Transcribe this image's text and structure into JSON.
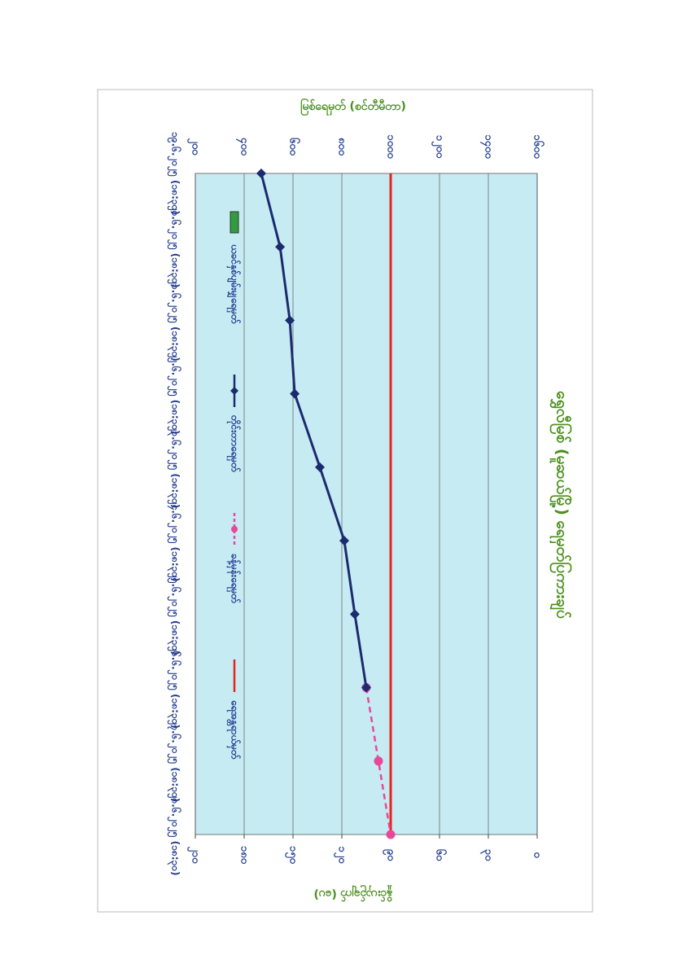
{
  "chart_data": {
    "type": "line",
    "title": "ရွှေလီမြစ် (မူဆယ်မြို့) ရေမှတ်ပြကားချပ်",
    "y_label": "မြစ်ရေမှတ် (စင်တီမီတာ)",
    "y2_label": "နှိုင်းယှဉ်ချက် (ပေ)",
    "categories": [
      "၁၉.၆.၂၀၂၅ (၁၈:၃၀)",
      "၂၀.၆.၂၀၂၅ (၁၈:၃၀)",
      "၂၁.၆.၂၀၂၅ (၁၈:၃၀)",
      "၂၂.၆.၂၀၂၅ (၁၈:၃၀)",
      "၂၃.၆.၂၀၂၅ (၁၈:၃၀)",
      "၂၄.၆.၂၀၂၅ (၁၈:၃၀)",
      "၂၅.၆.၂၀၂၅ (၁၈:၃၀)",
      "၂၆.၆.၂၀၂၅ (၁၈:၃၀)",
      "၂၇.၆.၂၀၂၅ (၁၈:၃၀)",
      "၂၈.၆.၂၀၂၅ (၁၈:၃၀)"
    ],
    "ylim": [
      200,
      1600
    ],
    "yticks": [
      {
        "value": 200,
        "label": "၂၀၀"
      },
      {
        "value": 400,
        "label": "၄၀၀"
      },
      {
        "value": 600,
        "label": "၆၀၀"
      },
      {
        "value": 800,
        "label": "၈၀၀"
      },
      {
        "value": 1000,
        "label": "၁၀၀၀"
      },
      {
        "value": 1200,
        "label": "၁၂၀၀"
      },
      {
        "value": 1400,
        "label": "၁၄၀၀"
      },
      {
        "value": 1600,
        "label": "၁၆၀၀"
      }
    ],
    "y2lim": [
      210,
      0
    ],
    "y2ticks": [
      {
        "value": 210,
        "label": "၂၁၀"
      },
      {
        "value": 180,
        "label": "၁၈၀"
      },
      {
        "value": 150,
        "label": "၁၅၀"
      },
      {
        "value": 120,
        "label": "၁၂၀"
      },
      {
        "value": 90,
        "label": "၉၀"
      },
      {
        "value": 60,
        "label": "၆၀"
      },
      {
        "value": 30,
        "label": "၃၀"
      },
      {
        "value": 0,
        "label": "၀"
      }
    ],
    "grid": true,
    "series": [
      {
        "name": "ရေအန္တရာယ်မှတ်",
        "color": "#e8231e",
        "style": "solid",
        "marker": "none",
        "values": [
          1000,
          1000,
          1000,
          1000,
          1000,
          1000,
          1000,
          1000,
          1000,
          1000
        ]
      },
      {
        "name": "ခန့်မှန်းရေမှတ်",
        "color": "#e8479a",
        "style": "dashed",
        "marker": "circle",
        "values": [
          null,
          null,
          null,
          null,
          null,
          null,
          null,
          900,
          950,
          1000
        ]
      },
      {
        "name": "တိုင်းတာရေမှတ်",
        "color": "#1c2a6e",
        "style": "solid",
        "marker": "diamond",
        "values": [
          470,
          547,
          587,
          607,
          710,
          810,
          853,
          900,
          null,
          null
        ]
      },
      {
        "name": "ယခင်နှစ်ပျမ်းမျှရေမှတ်",
        "color": "#2e9e3e",
        "style": "bar",
        "marker": "rect",
        "values": [
          null,
          null,
          null,
          null,
          null,
          null,
          null,
          null,
          null,
          null
        ]
      }
    ]
  }
}
